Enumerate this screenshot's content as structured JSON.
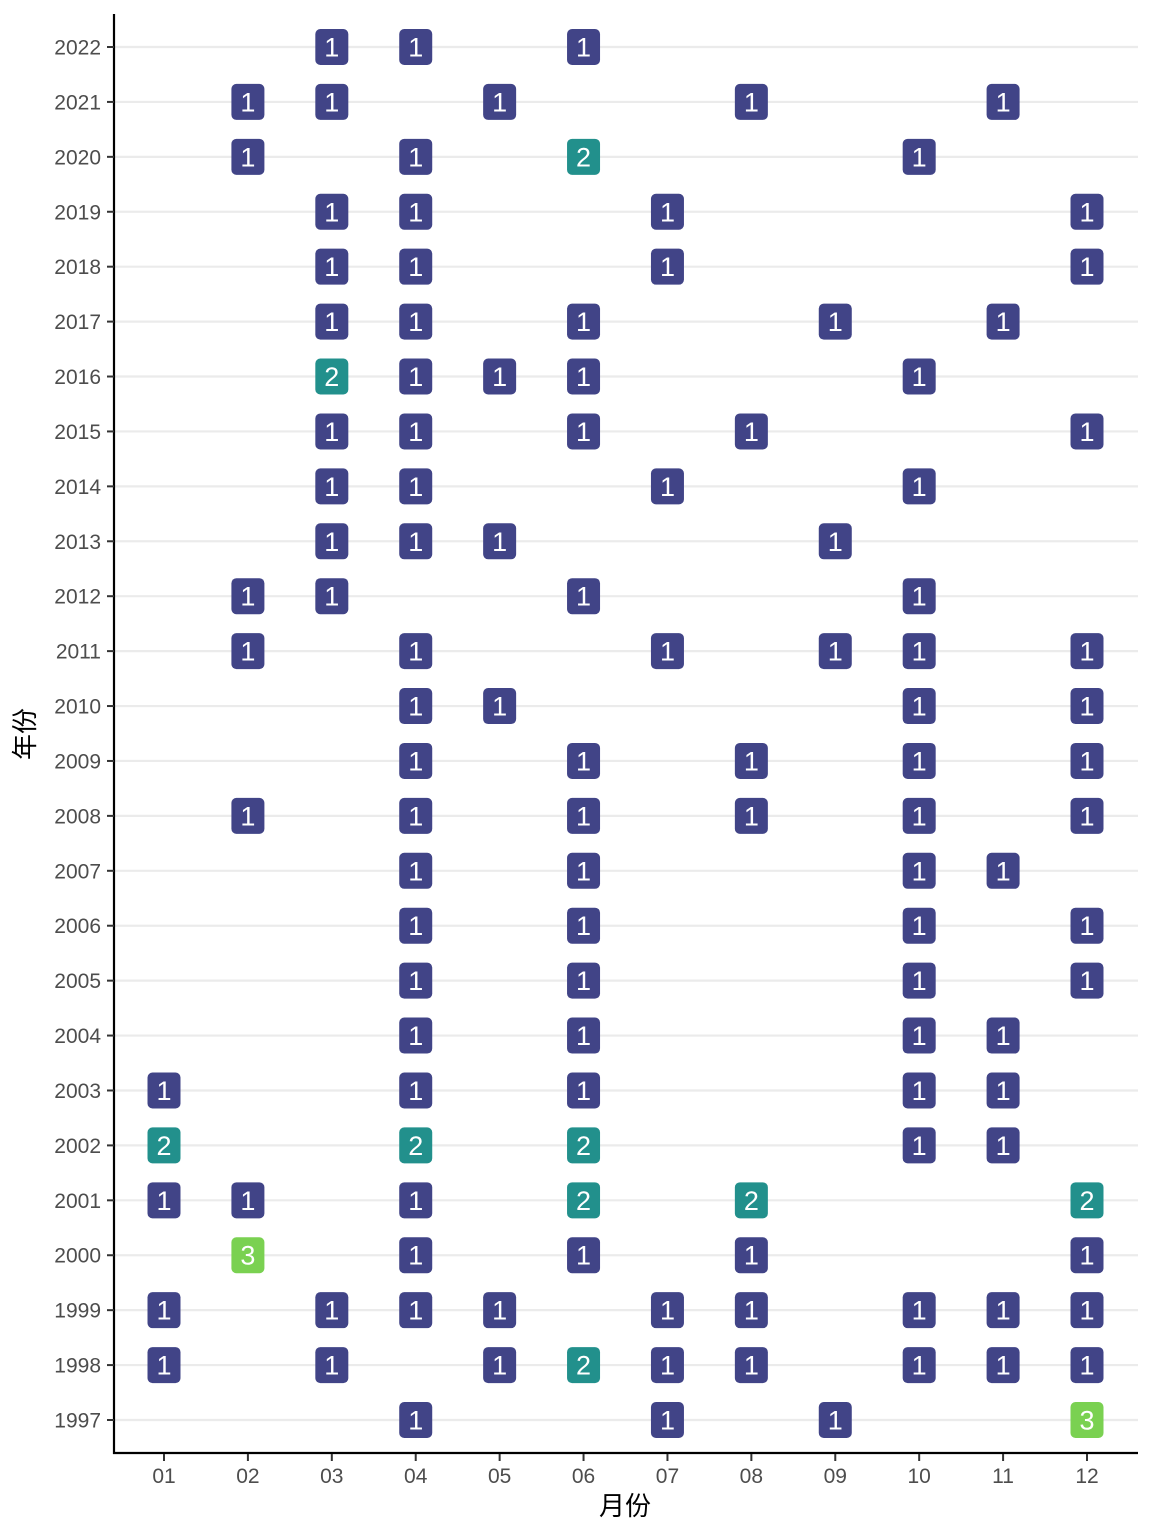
{
  "chart_data": {
    "type": "heatmap",
    "xlabel": "月份",
    "ylabel": "年份",
    "x_categories": [
      "01",
      "02",
      "03",
      "04",
      "05",
      "06",
      "07",
      "08",
      "09",
      "10",
      "11",
      "12"
    ],
    "y_categories": [
      "1997",
      "1998",
      "1999",
      "2000",
      "2001",
      "2002",
      "2003",
      "2004",
      "2005",
      "2006",
      "2007",
      "2008",
      "2009",
      "2010",
      "2011",
      "2012",
      "2013",
      "2014",
      "2015",
      "2016",
      "2017",
      "2018",
      "2019",
      "2020",
      "2021",
      "2022"
    ],
    "grid": "horizontal",
    "color_scale": {
      "1": "#414487",
      "2": "#22908C",
      "3": "#7AD151"
    },
    "text_color": "#ffffff",
    "cells": [
      {
        "x": "03",
        "y": "2022",
        "value": 1
      },
      {
        "x": "04",
        "y": "2022",
        "value": 1
      },
      {
        "x": "06",
        "y": "2022",
        "value": 1
      },
      {
        "x": "02",
        "y": "2021",
        "value": 1
      },
      {
        "x": "03",
        "y": "2021",
        "value": 1
      },
      {
        "x": "05",
        "y": "2021",
        "value": 1
      },
      {
        "x": "08",
        "y": "2021",
        "value": 1
      },
      {
        "x": "11",
        "y": "2021",
        "value": 1
      },
      {
        "x": "02",
        "y": "2020",
        "value": 1
      },
      {
        "x": "04",
        "y": "2020",
        "value": 1
      },
      {
        "x": "06",
        "y": "2020",
        "value": 2
      },
      {
        "x": "10",
        "y": "2020",
        "value": 1
      },
      {
        "x": "03",
        "y": "2019",
        "value": 1
      },
      {
        "x": "04",
        "y": "2019",
        "value": 1
      },
      {
        "x": "07",
        "y": "2019",
        "value": 1
      },
      {
        "x": "12",
        "y": "2019",
        "value": 1
      },
      {
        "x": "03",
        "y": "2018",
        "value": 1
      },
      {
        "x": "04",
        "y": "2018",
        "value": 1
      },
      {
        "x": "07",
        "y": "2018",
        "value": 1
      },
      {
        "x": "12",
        "y": "2018",
        "value": 1
      },
      {
        "x": "03",
        "y": "2017",
        "value": 1
      },
      {
        "x": "04",
        "y": "2017",
        "value": 1
      },
      {
        "x": "06",
        "y": "2017",
        "value": 1
      },
      {
        "x": "09",
        "y": "2017",
        "value": 1
      },
      {
        "x": "11",
        "y": "2017",
        "value": 1
      },
      {
        "x": "03",
        "y": "2016",
        "value": 2
      },
      {
        "x": "04",
        "y": "2016",
        "value": 1
      },
      {
        "x": "05",
        "y": "2016",
        "value": 1
      },
      {
        "x": "06",
        "y": "2016",
        "value": 1
      },
      {
        "x": "10",
        "y": "2016",
        "value": 1
      },
      {
        "x": "03",
        "y": "2015",
        "value": 1
      },
      {
        "x": "04",
        "y": "2015",
        "value": 1
      },
      {
        "x": "06",
        "y": "2015",
        "value": 1
      },
      {
        "x": "08",
        "y": "2015",
        "value": 1
      },
      {
        "x": "12",
        "y": "2015",
        "value": 1
      },
      {
        "x": "03",
        "y": "2014",
        "value": 1
      },
      {
        "x": "04",
        "y": "2014",
        "value": 1
      },
      {
        "x": "07",
        "y": "2014",
        "value": 1
      },
      {
        "x": "10",
        "y": "2014",
        "value": 1
      },
      {
        "x": "03",
        "y": "2013",
        "value": 1
      },
      {
        "x": "04",
        "y": "2013",
        "value": 1
      },
      {
        "x": "05",
        "y": "2013",
        "value": 1
      },
      {
        "x": "09",
        "y": "2013",
        "value": 1
      },
      {
        "x": "02",
        "y": "2012",
        "value": 1
      },
      {
        "x": "03",
        "y": "2012",
        "value": 1
      },
      {
        "x": "06",
        "y": "2012",
        "value": 1
      },
      {
        "x": "10",
        "y": "2012",
        "value": 1
      },
      {
        "x": "02",
        "y": "2011",
        "value": 1
      },
      {
        "x": "04",
        "y": "2011",
        "value": 1
      },
      {
        "x": "07",
        "y": "2011",
        "value": 1
      },
      {
        "x": "09",
        "y": "2011",
        "value": 1
      },
      {
        "x": "10",
        "y": "2011",
        "value": 1
      },
      {
        "x": "12",
        "y": "2011",
        "value": 1
      },
      {
        "x": "04",
        "y": "2010",
        "value": 1
      },
      {
        "x": "05",
        "y": "2010",
        "value": 1
      },
      {
        "x": "10",
        "y": "2010",
        "value": 1
      },
      {
        "x": "12",
        "y": "2010",
        "value": 1
      },
      {
        "x": "04",
        "y": "2009",
        "value": 1
      },
      {
        "x": "06",
        "y": "2009",
        "value": 1
      },
      {
        "x": "08",
        "y": "2009",
        "value": 1
      },
      {
        "x": "10",
        "y": "2009",
        "value": 1
      },
      {
        "x": "12",
        "y": "2009",
        "value": 1
      },
      {
        "x": "02",
        "y": "2008",
        "value": 1
      },
      {
        "x": "04",
        "y": "2008",
        "value": 1
      },
      {
        "x": "06",
        "y": "2008",
        "value": 1
      },
      {
        "x": "08",
        "y": "2008",
        "value": 1
      },
      {
        "x": "10",
        "y": "2008",
        "value": 1
      },
      {
        "x": "12",
        "y": "2008",
        "value": 1
      },
      {
        "x": "04",
        "y": "2007",
        "value": 1
      },
      {
        "x": "06",
        "y": "2007",
        "value": 1
      },
      {
        "x": "10",
        "y": "2007",
        "value": 1
      },
      {
        "x": "11",
        "y": "2007",
        "value": 1
      },
      {
        "x": "04",
        "y": "2006",
        "value": 1
      },
      {
        "x": "06",
        "y": "2006",
        "value": 1
      },
      {
        "x": "10",
        "y": "2006",
        "value": 1
      },
      {
        "x": "12",
        "y": "2006",
        "value": 1
      },
      {
        "x": "04",
        "y": "2005",
        "value": 1
      },
      {
        "x": "06",
        "y": "2005",
        "value": 1
      },
      {
        "x": "10",
        "y": "2005",
        "value": 1
      },
      {
        "x": "12",
        "y": "2005",
        "value": 1
      },
      {
        "x": "04",
        "y": "2004",
        "value": 1
      },
      {
        "x": "06",
        "y": "2004",
        "value": 1
      },
      {
        "x": "10",
        "y": "2004",
        "value": 1
      },
      {
        "x": "11",
        "y": "2004",
        "value": 1
      },
      {
        "x": "01",
        "y": "2003",
        "value": 1
      },
      {
        "x": "04",
        "y": "2003",
        "value": 1
      },
      {
        "x": "06",
        "y": "2003",
        "value": 1
      },
      {
        "x": "10",
        "y": "2003",
        "value": 1
      },
      {
        "x": "11",
        "y": "2003",
        "value": 1
      },
      {
        "x": "01",
        "y": "2002",
        "value": 2
      },
      {
        "x": "04",
        "y": "2002",
        "value": 2
      },
      {
        "x": "06",
        "y": "2002",
        "value": 2
      },
      {
        "x": "10",
        "y": "2002",
        "value": 1
      },
      {
        "x": "11",
        "y": "2002",
        "value": 1
      },
      {
        "x": "01",
        "y": "2001",
        "value": 1
      },
      {
        "x": "02",
        "y": "2001",
        "value": 1
      },
      {
        "x": "04",
        "y": "2001",
        "value": 1
      },
      {
        "x": "06",
        "y": "2001",
        "value": 2
      },
      {
        "x": "08",
        "y": "2001",
        "value": 2
      },
      {
        "x": "12",
        "y": "2001",
        "value": 2
      },
      {
        "x": "02",
        "y": "2000",
        "value": 3
      },
      {
        "x": "04",
        "y": "2000",
        "value": 1
      },
      {
        "x": "06",
        "y": "2000",
        "value": 1
      },
      {
        "x": "08",
        "y": "2000",
        "value": 1
      },
      {
        "x": "12",
        "y": "2000",
        "value": 1
      },
      {
        "x": "01",
        "y": "1999",
        "value": 1
      },
      {
        "x": "03",
        "y": "1999",
        "value": 1
      },
      {
        "x": "04",
        "y": "1999",
        "value": 1
      },
      {
        "x": "05",
        "y": "1999",
        "value": 1
      },
      {
        "x": "07",
        "y": "1999",
        "value": 1
      },
      {
        "x": "08",
        "y": "1999",
        "value": 1
      },
      {
        "x": "10",
        "y": "1999",
        "value": 1
      },
      {
        "x": "11",
        "y": "1999",
        "value": 1
      },
      {
        "x": "12",
        "y": "1999",
        "value": 1
      },
      {
        "x": "01",
        "y": "1998",
        "value": 1
      },
      {
        "x": "03",
        "y": "1998",
        "value": 1
      },
      {
        "x": "05",
        "y": "1998",
        "value": 1
      },
      {
        "x": "06",
        "y": "1998",
        "value": 2
      },
      {
        "x": "07",
        "y": "1998",
        "value": 1
      },
      {
        "x": "08",
        "y": "1998",
        "value": 1
      },
      {
        "x": "10",
        "y": "1998",
        "value": 1
      },
      {
        "x": "11",
        "y": "1998",
        "value": 1
      },
      {
        "x": "12",
        "y": "1998",
        "value": 1
      },
      {
        "x": "04",
        "y": "1997",
        "value": 1
      },
      {
        "x": "07",
        "y": "1997",
        "value": 1
      },
      {
        "x": "09",
        "y": "1997",
        "value": 1
      },
      {
        "x": "12",
        "y": "1997",
        "value": 3
      }
    ]
  }
}
